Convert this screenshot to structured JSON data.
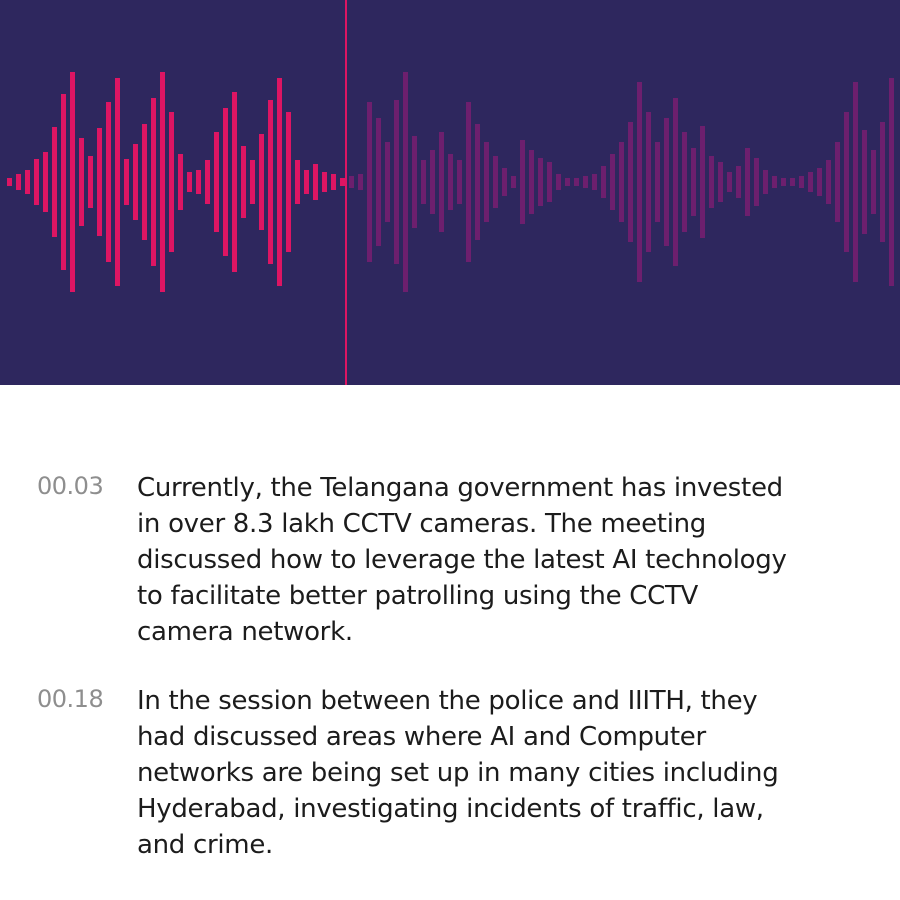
{
  "player": {
    "progress": 0.384,
    "played_color": "#dd1563",
    "unplayed_color": "#6d1f6e",
    "background_color": "#2e275e",
    "waveform_levels": [
      4,
      8,
      12,
      23,
      30,
      55,
      88,
      110,
      44,
      26,
      54,
      80,
      104,
      23,
      38,
      58,
      84,
      110,
      70,
      28,
      10,
      12,
      22,
      50,
      74,
      90,
      36,
      22,
      48,
      82,
      104,
      70,
      22,
      12,
      18,
      10,
      8,
      4,
      6,
      8,
      80,
      64,
      40,
      82,
      110,
      46,
      22,
      32,
      50,
      28,
      22,
      80,
      58,
      40,
      26,
      14,
      6,
      42,
      32,
      24,
      20,
      8,
      4,
      4,
      6,
      8,
      16,
      28,
      40,
      60,
      100,
      70,
      40,
      64,
      84,
      50,
      34,
      56,
      26,
      20,
      10,
      16,
      34,
      24,
      12,
      6,
      4,
      4,
      6,
      10,
      14,
      22,
      40,
      70,
      100,
      52,
      32,
      60,
      104,
      92
    ]
  },
  "transcript": [
    {
      "time": "00.03",
      "lines": [
        "Currently, the Telangana government has invested",
        "in over 8.3 lakh CCTV cameras. The meeting",
        "discussed how to leverage the latest AI technology",
        "to facilitate better patrolling using the CCTV",
        "camera network."
      ]
    },
    {
      "time": "00.18",
      "lines": [
        "In the session between the police and IIITH, they",
        "had discussed areas where AI and Computer",
        "networks are being set up in many cities including",
        "Hyderabad, investigating incidents of traffic, law,",
        "and crime."
      ]
    }
  ]
}
